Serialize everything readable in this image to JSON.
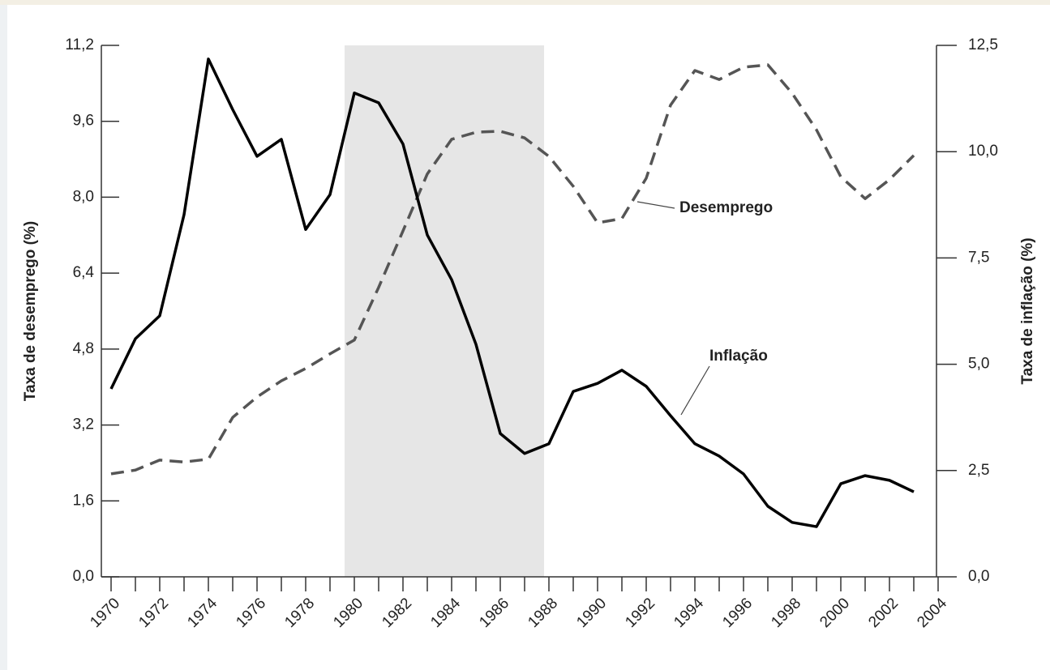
{
  "chart_data": {
    "type": "line",
    "x": [
      1970,
      1971,
      1972,
      1973,
      1974,
      1975,
      1976,
      1977,
      1978,
      1979,
      1980,
      1981,
      1982,
      1983,
      1984,
      1985,
      1986,
      1987,
      1988,
      1989,
      1990,
      1991,
      1992,
      1993,
      1994,
      1995,
      1996,
      1997,
      1998,
      1999,
      2000,
      2001,
      2002,
      2003
    ],
    "series": [
      {
        "name": "Desemprego",
        "color": "#555555",
        "dash": true,
        "axis": "y",
        "values": [
          2.17,
          2.25,
          2.46,
          2.42,
          2.48,
          3.36,
          3.79,
          4.13,
          4.39,
          4.7,
          4.99,
          6.1,
          7.29,
          8.49,
          9.22,
          9.37,
          9.39,
          9.25,
          8.86,
          8.23,
          7.46,
          7.55,
          8.4,
          9.94,
          10.67,
          10.48,
          10.74,
          10.79,
          10.19,
          9.42,
          8.43,
          7.97,
          8.37,
          8.88
        ]
      },
      {
        "name": "Inflação",
        "color": "#000000",
        "dash": false,
        "axis": "y2",
        "values": [
          4.42,
          5.6,
          6.14,
          8.52,
          12.18,
          10.99,
          9.89,
          10.29,
          8.17,
          8.99,
          11.38,
          11.15,
          10.18,
          8.04,
          6.99,
          5.47,
          3.37,
          2.9,
          3.13,
          4.36,
          4.55,
          4.86,
          4.48,
          3.79,
          3.13,
          2.84,
          2.42,
          1.66,
          1.28,
          1.18,
          2.19,
          2.38,
          2.27,
          2.0
        ]
      }
    ],
    "shaded_region": [
      1979.6,
      1987.8
    ],
    "ylabel": "Taxa de desemprego (%)",
    "y2label": "Taxa de inflação (%)",
    "xlim": [
      1970,
      2004
    ],
    "xticks": [
      1970,
      1972,
      1974,
      1976,
      1978,
      1980,
      1982,
      1984,
      1986,
      1988,
      1990,
      1992,
      1994,
      1996,
      1998,
      2000,
      2002,
      2004
    ],
    "ylim": [
      0,
      11.2
    ],
    "yticks": [
      {
        "value": 0,
        "label": "0,0"
      },
      {
        "value": 1.6,
        "label": "1,6"
      },
      {
        "value": 3.2,
        "label": "3,2"
      },
      {
        "value": 4.8,
        "label": "4,8"
      },
      {
        "value": 6.4,
        "label": "6,4"
      },
      {
        "value": 8,
        "label": "8,0"
      },
      {
        "value": 9.6,
        "label": "9,6"
      },
      {
        "value": 11.2,
        "label": "11,2"
      }
    ],
    "y2lim": [
      0,
      12.5
    ],
    "y2ticks": [
      {
        "value": 0,
        "label": "0,0"
      },
      {
        "value": 2.5,
        "label": "2,5"
      },
      {
        "value": 5,
        "label": "5,0"
      },
      {
        "value": 7.5,
        "label": "7,5"
      },
      {
        "value": 10,
        "label": "10,0"
      },
      {
        "value": 12.5,
        "label": "12,5"
      }
    ]
  }
}
